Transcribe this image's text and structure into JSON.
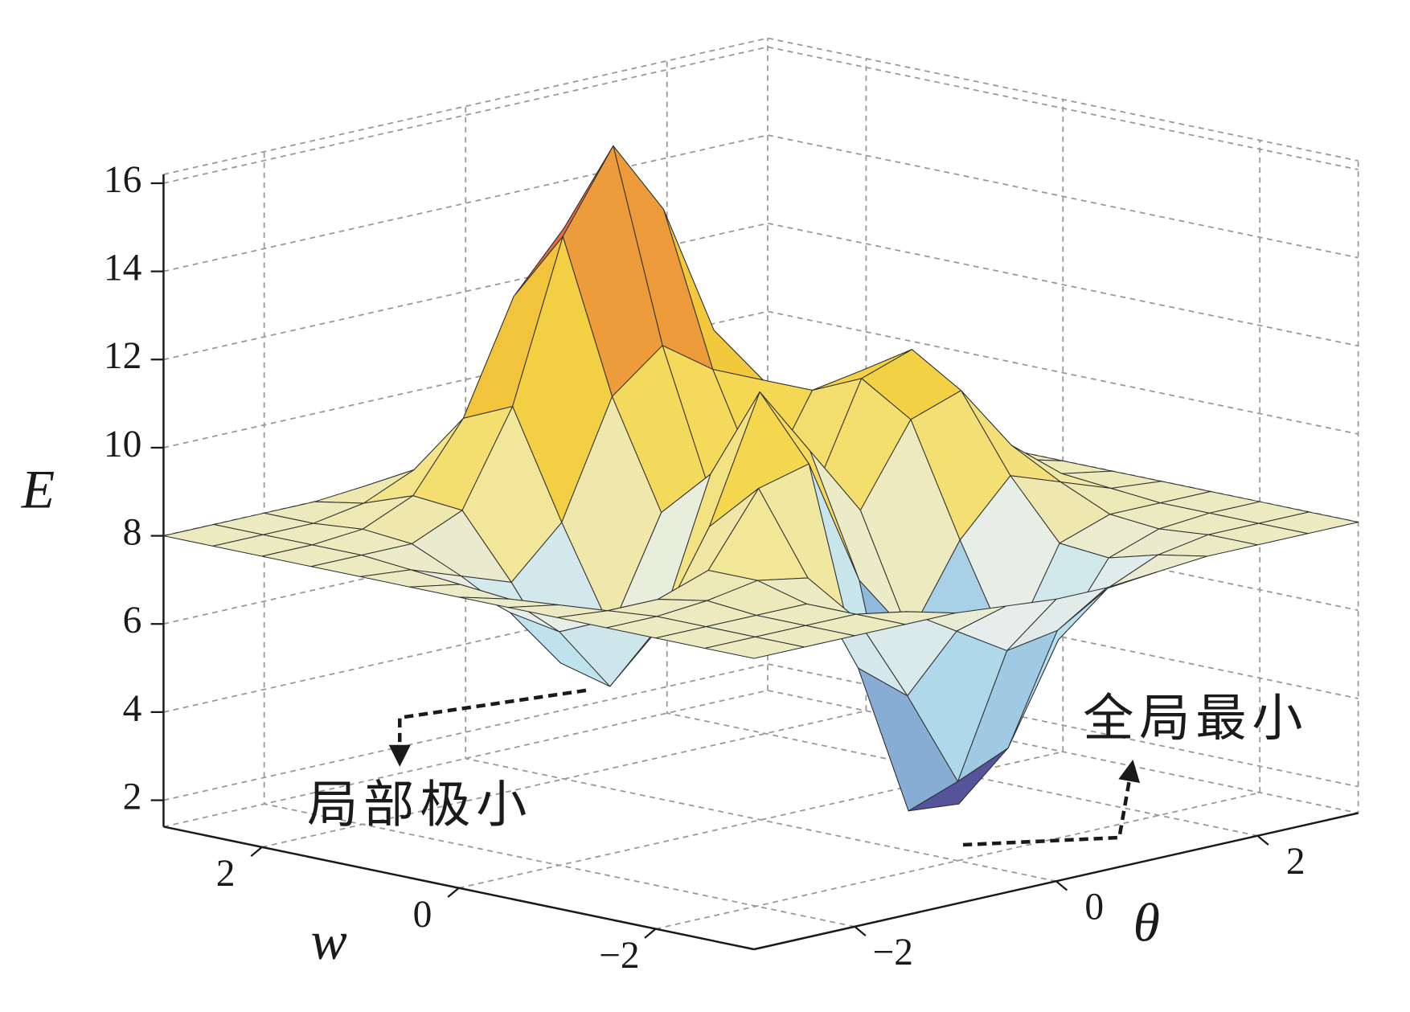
{
  "chart_data": {
    "type": "surface",
    "x_label": "θ",
    "y_label": "w",
    "z_label": "E",
    "theta": [
      -3,
      -2.5,
      -2,
      -1.5,
      -1,
      -0.5,
      0,
      0.5,
      1,
      1.5,
      2,
      2.5,
      3
    ],
    "w": [
      -3,
      -2.5,
      -2,
      -1.5,
      -1,
      -0.5,
      0,
      0.5,
      1,
      1.5,
      2,
      2.5,
      3
    ],
    "z": [
      [
        8.0,
        8.0,
        8.0,
        8.0,
        8.0,
        7.9,
        7.8,
        7.8,
        7.9,
        8.0,
        8.0,
        8.0,
        8.0
      ],
      [
        8.0,
        8.0,
        8.0,
        8.0,
        7.8,
        7.1,
        6.4,
        6.6,
        7.3,
        7.8,
        8.0,
        8.0,
        8.0
      ],
      [
        8.0,
        8.0,
        8.0,
        8.0,
        7.4,
        5.4,
        3.2,
        3.7,
        5.9,
        7.5,
        7.9,
        8.0,
        8.0
      ],
      [
        8.0,
        8.0,
        8.1,
        8.3,
        8.1,
        5.8,
        2.3,
        2.2,
        5.4,
        7.6,
        8.0,
        8.0,
        8.0
      ],
      [
        8.0,
        7.9,
        7.9,
        8.3,
        9.9,
        10.2,
        7.3,
        5.8,
        7.7,
        8.9,
        8.5,
        8.1,
        8.0
      ],
      [
        8.0,
        7.8,
        7.2,
        6.8,
        8.8,
        11.6,
        10.0,
        8.4,
        10.2,
        10.6,
        9.1,
        8.2,
        8.0
      ],
      [
        8.0,
        7.7,
        6.7,
        5.2,
        6.3,
        9.5,
        9.0,
        8.4,
        10.9,
        11.3,
        9.4,
        8.3,
        8.0
      ],
      [
        8.0,
        7.8,
        6.9,
        5.5,
        6.0,
        8.4,
        8.5,
        8.4,
        10.4,
        10.6,
        9.1,
        8.2,
        8.0
      ],
      [
        8.0,
        7.9,
        7.5,
        7.1,
        8.2,
        10.8,
        11.7,
        10.9,
        10.4,
        9.6,
        8.6,
        8.1,
        8.0
      ],
      [
        8.0,
        8.0,
        8.0,
        8.5,
        10.6,
        14.2,
        16.0,
        14.3,
        11.3,
        9.2,
        8.3,
        8.0,
        8.0
      ],
      [
        8.0,
        8.0,
        8.1,
        8.6,
        10.1,
        12.6,
        13.9,
        12.6,
        10.2,
        8.7,
        8.1,
        8.0,
        8.0
      ],
      [
        8.0,
        8.0,
        8.0,
        8.2,
        8.7,
        9.5,
        9.9,
        9.5,
        8.7,
        8.2,
        8.0,
        8.0,
        8.0
      ],
      [
        8.0,
        8.0,
        8.0,
        8.0,
        8.1,
        8.2,
        8.3,
        8.2,
        8.1,
        8.0,
        8.0,
        8.0,
        8.0
      ]
    ],
    "xlim": [
      -3,
      3
    ],
    "ylim": [
      -3,
      3
    ],
    "zlim": [
      1.4,
      16.2
    ],
    "xticks": [
      {
        "value": -2,
        "label": "−2"
      },
      0,
      2
    ],
    "yticks": [
      {
        "value": -2,
        "label": "−2"
      },
      0,
      2
    ],
    "zticks": [
      2,
      4,
      6,
      8,
      10,
      12,
      14,
      16
    ],
    "grid": true,
    "colormap": [
      "#3d2c6b",
      "#55559c",
      "#8fb9dc",
      "#b8e0ee",
      "#e6eeea",
      "#f3e58e",
      "#f4d548",
      "#f2c83c",
      "#ec9a3a",
      "#d9504a",
      "#b92d5e"
    ],
    "edge_color": "#2e2e2e",
    "annotations": [
      "局部极小",
      "全局最小"
    ]
  }
}
